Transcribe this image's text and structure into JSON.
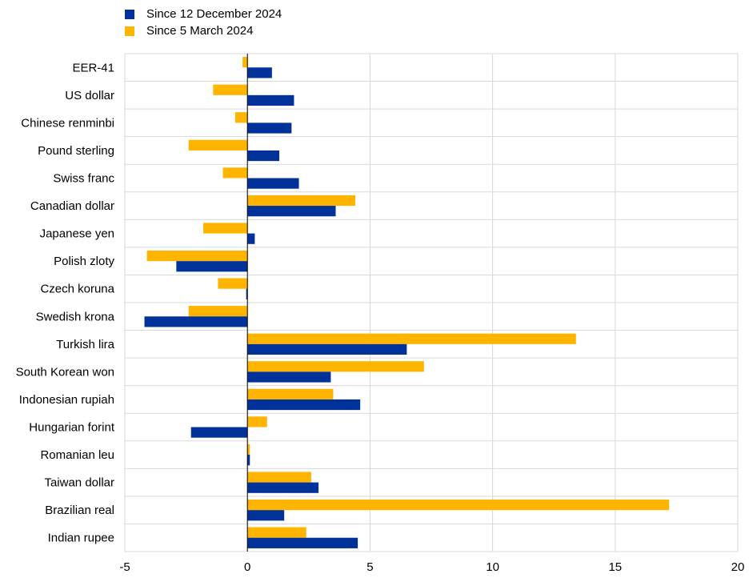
{
  "colors": {
    "series_a": "#003299",
    "series_b": "#ffb400",
    "grid": "#d9d9d9",
    "axis": "#000000"
  },
  "chart_data": {
    "type": "bar",
    "orientation": "horizontal",
    "categories": [
      "EER-41",
      "US dollar",
      "Chinese renminbi",
      "Pound sterling",
      "Swiss franc",
      "Canadian dollar",
      "Japanese yen",
      "Polish zloty",
      "Czech koruna",
      "Swedish krona",
      "Turkish lira",
      "South Korean won",
      "Indonesian rupiah",
      "Hungarian forint",
      "Romanian leu",
      "Taiwan dollar",
      "Brazilian real",
      "Indian rupee"
    ],
    "series": [
      {
        "name": "Since 12 December 2024",
        "color": "#003299",
        "values": [
          1.0,
          1.9,
          1.8,
          1.3,
          2.1,
          3.6,
          0.3,
          -2.9,
          -0.05,
          -4.2,
          6.5,
          3.4,
          4.6,
          -2.3,
          0.1,
          2.9,
          1.5,
          4.5
        ]
      },
      {
        "name": "Since 5 March 2024",
        "color": "#ffb400",
        "values": [
          -0.2,
          -1.4,
          -0.5,
          -2.4,
          -1.0,
          4.4,
          -1.8,
          -4.1,
          -1.2,
          -2.4,
          13.4,
          7.2,
          3.5,
          0.8,
          0.1,
          2.6,
          17.2,
          2.4
        ]
      }
    ],
    "xlim": [
      -5,
      20
    ],
    "xticks": [
      "-5",
      "0",
      "5",
      "10",
      "15",
      "20"
    ],
    "grid": true,
    "legend_position": "top-left",
    "title": "",
    "xlabel": "",
    "ylabel": ""
  }
}
